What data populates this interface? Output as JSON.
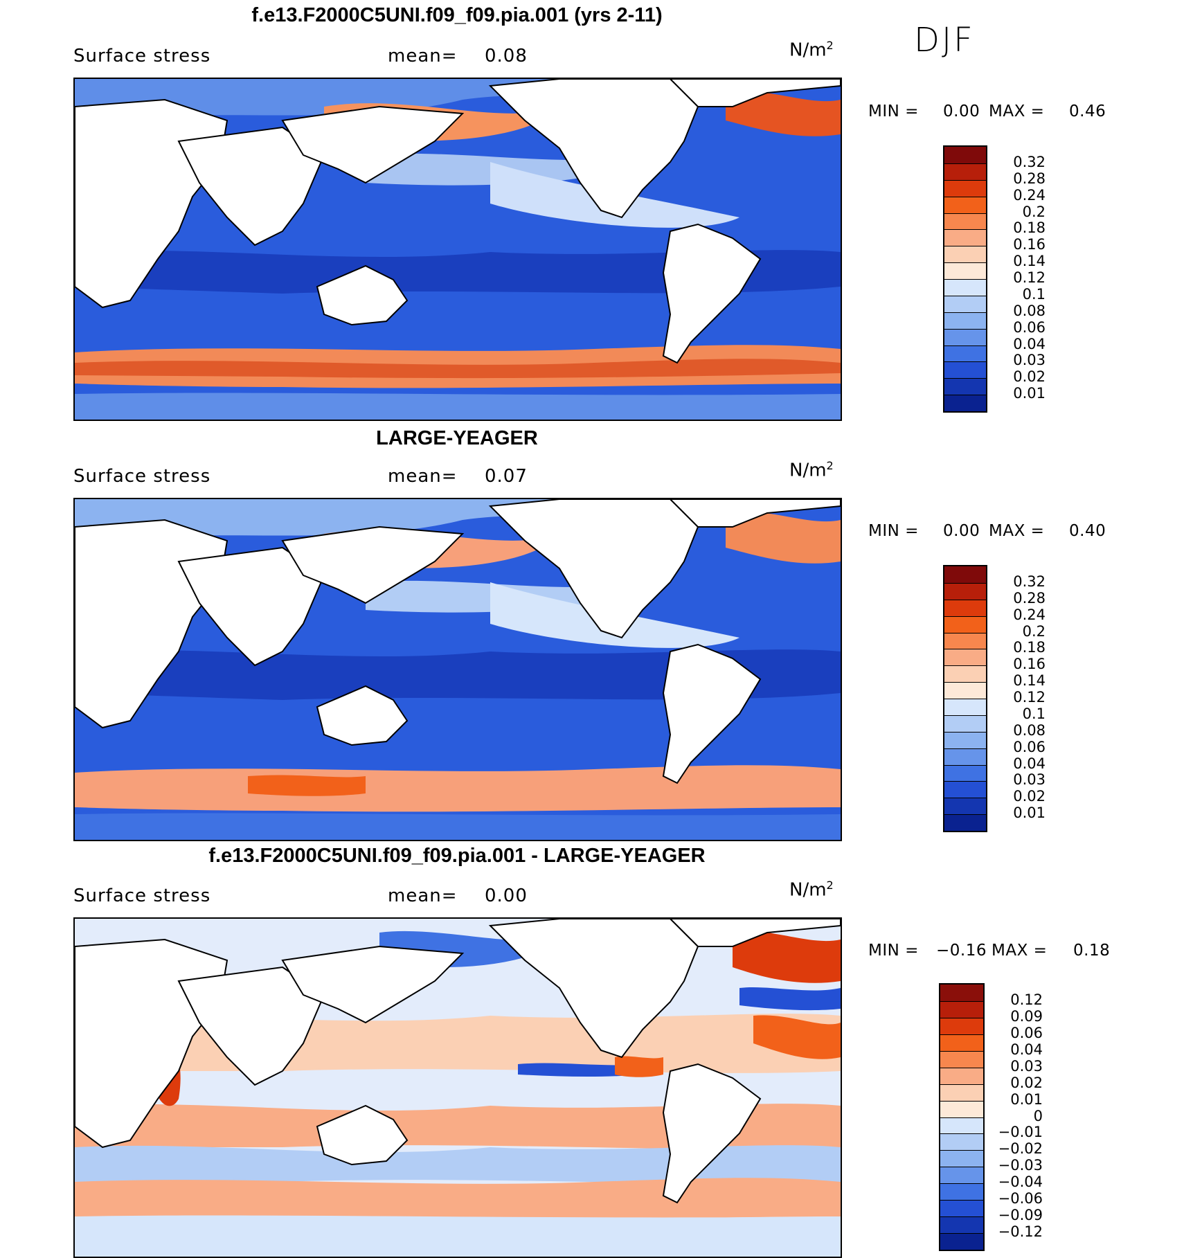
{
  "season": "DJF",
  "panels": [
    {
      "title": "f.e13.F2000C5UNI.f09_f09.pia.001 (yrs 2-11)",
      "variable": "Surface stress",
      "mean_label": "mean=",
      "mean_value": "0.08",
      "units": "N/m",
      "units_exp": "2",
      "min_label": "MIN =",
      "min_value": "0.00",
      "max_label": "MAX =",
      "max_value": "0.46",
      "colorbar": {
        "colors": [
          "#7f0a0a",
          "#b71f0a",
          "#dd3b0c",
          "#f2611a",
          "#f7874e",
          "#f9ac86",
          "#fbd0b4",
          "#fde9d8",
          "#d6e6fb",
          "#b2cdf5",
          "#8cb3f0",
          "#6694ea",
          "#3f72e3",
          "#2450d4",
          "#1436b0",
          "#0a2290"
        ],
        "labels": [
          "0.32",
          "0.28",
          "0.24",
          "0.2",
          "0.18",
          "0.16",
          "0.14",
          "0.12",
          "0.1",
          "0.08",
          "0.06",
          "0.04",
          "0.03",
          "0.02",
          "0.01"
        ]
      }
    },
    {
      "title": "LARGE-YEAGER",
      "variable": "Surface stress",
      "mean_label": "mean=",
      "mean_value": "0.07",
      "units": "N/m",
      "units_exp": "2",
      "min_label": "MIN =",
      "min_value": "0.00",
      "max_label": "MAX =",
      "max_value": "0.40",
      "colorbar": {
        "colors": [
          "#7f0a0a",
          "#b71f0a",
          "#dd3b0c",
          "#f2611a",
          "#f7874e",
          "#f9ac86",
          "#fbd0b4",
          "#fde9d8",
          "#d6e6fb",
          "#b2cdf5",
          "#8cb3f0",
          "#6694ea",
          "#3f72e3",
          "#2450d4",
          "#1436b0",
          "#0a2290"
        ],
        "labels": [
          "0.32",
          "0.28",
          "0.24",
          "0.2",
          "0.18",
          "0.16",
          "0.14",
          "0.12",
          "0.1",
          "0.08",
          "0.06",
          "0.04",
          "0.03",
          "0.02",
          "0.01"
        ]
      }
    },
    {
      "title": "f.e13.F2000C5UNI.f09_f09.pia.001 - LARGE-YEAGER",
      "variable": "Surface stress",
      "mean_label": "mean=",
      "mean_value": "0.00",
      "units": "N/m",
      "units_exp": "2",
      "min_label": "MIN =",
      "min_value": "−0.16",
      "max_label": "MAX =",
      "max_value": "0.18",
      "colorbar": {
        "colors": [
          "#8a0f0a",
          "#b71f0a",
          "#dd3b0c",
          "#f2611a",
          "#f7874e",
          "#f9ac86",
          "#fbd0b4",
          "#fde9d8",
          "#d6e6fb",
          "#b2cdf5",
          "#8cb3f0",
          "#6694ea",
          "#3f72e3",
          "#2450d4",
          "#1436b0",
          "#0a2290"
        ],
        "labels": [
          "0.12",
          "0.09",
          "0.06",
          "0.04",
          "0.03",
          "0.02",
          "0.01",
          "0",
          "−0.01",
          "−0.02",
          "−0.03",
          "−0.04",
          "−0.06",
          "−0.09",
          "−0.12"
        ]
      }
    }
  ]
}
